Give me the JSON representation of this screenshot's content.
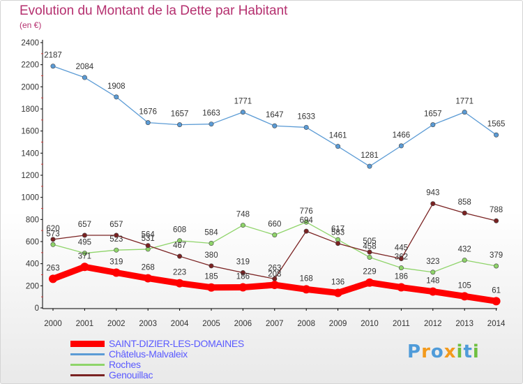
{
  "title": "Evolution du Montant de la Dette par Habitant",
  "subtitle": "(en €)",
  "logo_text": "Proxiti",
  "chart_data": {
    "type": "line",
    "x": [
      "2000",
      "2001",
      "2002",
      "2003",
      "2004",
      "2005",
      "2006",
      "2007",
      "2008",
      "2009",
      "2010",
      "2011",
      "2012",
      "2013",
      "2014"
    ],
    "y_ticks": [
      0,
      200,
      400,
      600,
      800,
      1000,
      1200,
      1400,
      1600,
      1800,
      2000,
      2200,
      2400
    ],
    "ylim": [
      0,
      2400
    ],
    "grid": false,
    "legend_placement": "bottom-left",
    "series": [
      {
        "name": "SAINT-DIZIER-LES-DOMAINES",
        "color": "#ff0000",
        "values": [
          263,
          371,
          319,
          268,
          223,
          185,
          186,
          208,
          168,
          136,
          229,
          186,
          148,
          105,
          61
        ]
      },
      {
        "name": "Châtelus-Malvaleix",
        "color": "#5b9bd5",
        "values": [
          2187,
          2084,
          1908,
          1676,
          1657,
          1663,
          1771,
          1647,
          1633,
          1461,
          1281,
          1466,
          1657,
          1771,
          1565
        ]
      },
      {
        "name": "Roches",
        "color": "#8fd46a",
        "values": [
          573,
          495,
          523,
          531,
          608,
          584,
          748,
          660,
          776,
          617,
          458,
          362,
          323,
          432,
          379
        ]
      },
      {
        "name": "Genouillac",
        "color": "#7a2222",
        "values": [
          620,
          657,
          657,
          564,
          467,
          380,
          319,
          263,
          694,
          583,
          505,
          445,
          943,
          858,
          788
        ]
      }
    ]
  }
}
